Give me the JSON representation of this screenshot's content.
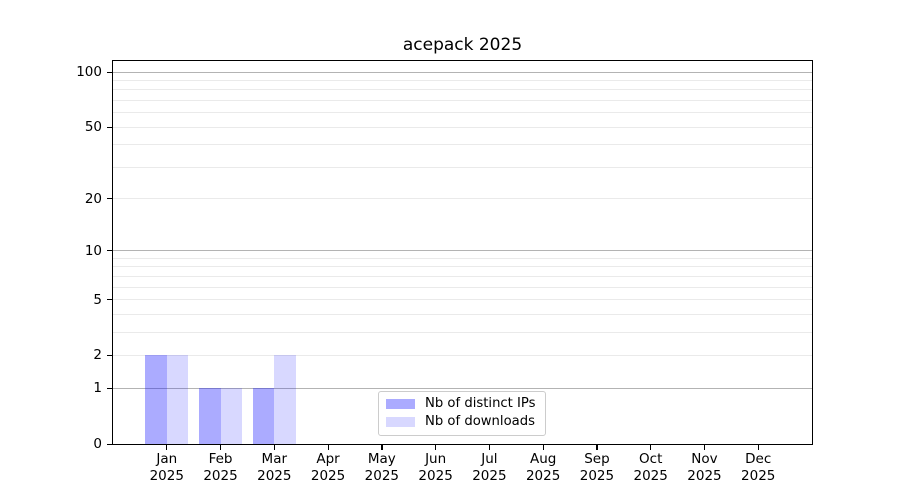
{
  "chart_data": {
    "type": "bar",
    "title": "acepack 2025",
    "categories": [
      "Jan",
      "Feb",
      "Mar",
      "Apr",
      "May",
      "Jun",
      "Jul",
      "Aug",
      "Sep",
      "Oct",
      "Nov",
      "Dec"
    ],
    "x_tick_second_line": "2025",
    "series": [
      {
        "name": "Nb of distinct IPs",
        "color": "rgba(10,10,255,0.34)",
        "values": [
          2,
          1,
          1,
          0,
          0,
          0,
          0,
          0,
          0,
          0,
          0,
          0
        ]
      },
      {
        "name": "Nb of downloads",
        "color": "rgba(10,10,255,0.16)",
        "values": [
          2,
          1,
          2,
          0,
          0,
          0,
          0,
          0,
          0,
          0,
          0,
          0
        ]
      }
    ],
    "y_axis": {
      "scale": "log1p",
      "ticks": [
        0,
        1,
        2,
        5,
        10,
        20,
        50,
        100
      ],
      "max": 115,
      "major_gridlines": [
        1,
        10,
        100
      ],
      "minor_gridlines": [
        2,
        3,
        4,
        5,
        6,
        7,
        8,
        9,
        20,
        30,
        40,
        50,
        60,
        70,
        80,
        90
      ]
    },
    "legend": {
      "location": "lower center"
    },
    "grid": true,
    "xlabel": "",
    "ylabel": ""
  },
  "colors": {
    "background": "#ffffff",
    "axis": "#000000",
    "major_gridline": "#b3b3b3",
    "minor_gridline": "#eaeaea",
    "legend_border": "#cccccc"
  }
}
